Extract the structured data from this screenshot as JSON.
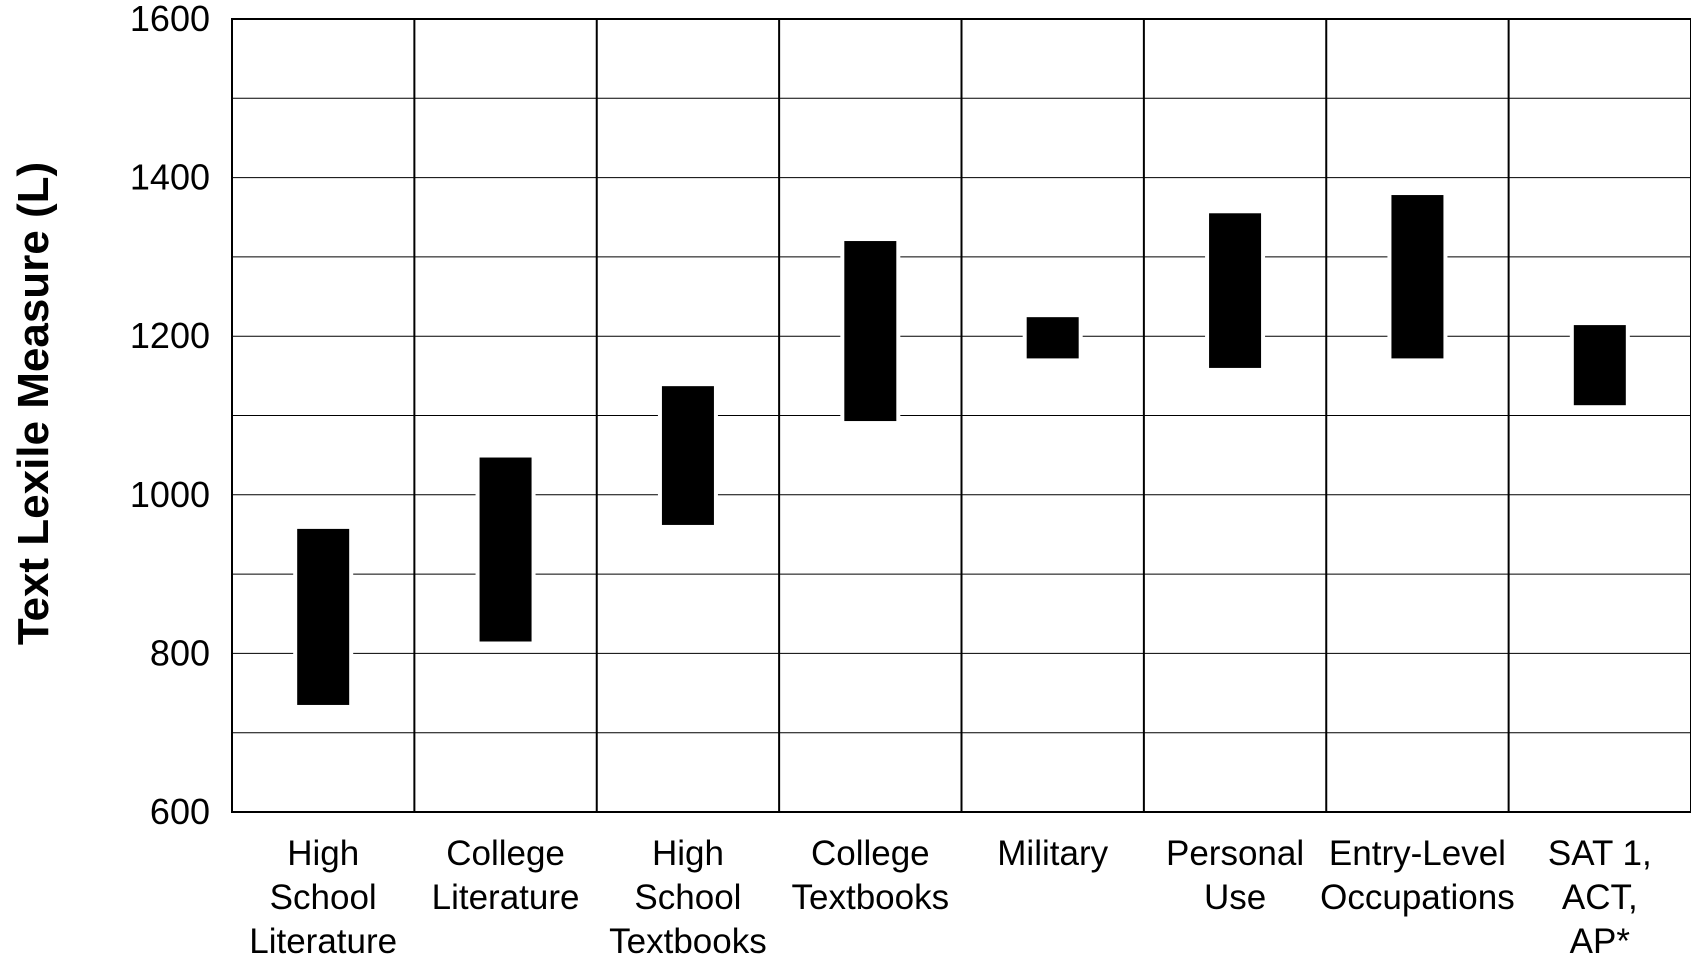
{
  "chart_data": {
    "type": "bar",
    "title": "",
    "xlabel": "",
    "ylabel": "Text Lexile Measure (L)",
    "ylim": [
      600,
      1600
    ],
    "yticks": [
      600,
      800,
      1000,
      1200,
      1400,
      1600
    ],
    "grid": true,
    "categories": [
      [
        "High",
        "School",
        "Literature"
      ],
      [
        "College",
        "Literature"
      ],
      [
        "High",
        "School",
        "Textbooks"
      ],
      [
        "College",
        "Textbooks"
      ],
      [
        "Military"
      ],
      [
        "Personal",
        "Use"
      ],
      [
        "Entry-Level",
        "Occupations"
      ],
      [
        "SAT 1,",
        "ACT,",
        "AP*"
      ]
    ],
    "ranges": [
      [
        735,
        957
      ],
      [
        815,
        1047
      ],
      [
        962,
        1137
      ],
      [
        1093,
        1320
      ],
      [
        1172,
        1224
      ],
      [
        1160,
        1355
      ],
      [
        1172,
        1378
      ],
      [
        1113,
        1214
      ]
    ],
    "colors": {
      "bar": "#000000",
      "grid": "#000000",
      "background": "#ffffff"
    }
  }
}
